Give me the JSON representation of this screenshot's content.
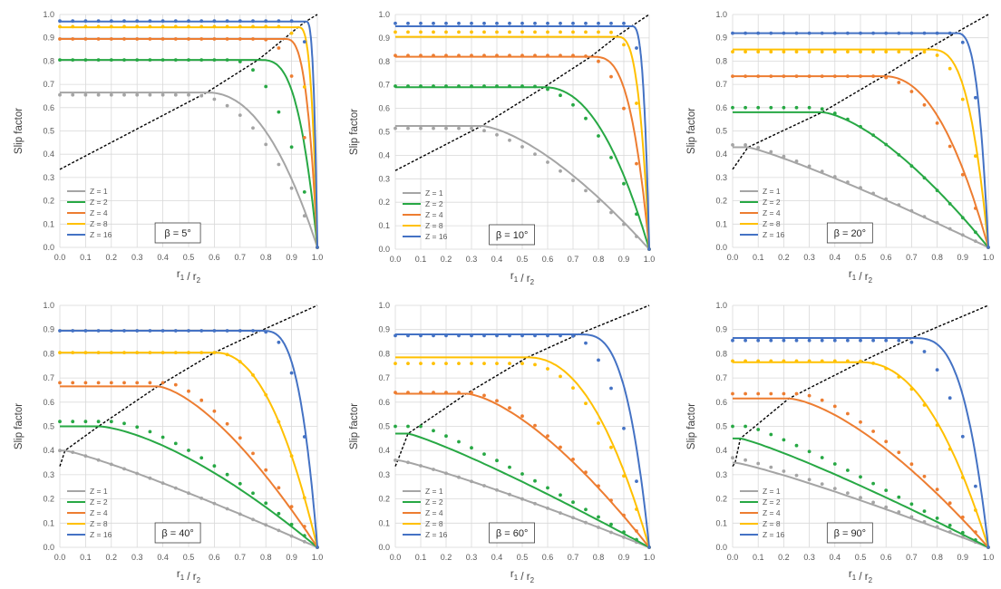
{
  "figure": {
    "xlabel": "r1 / r2",
    "ylabel": "Slip factor",
    "x_ticks": [
      "0.0",
      "0.1",
      "0.2",
      "0.3",
      "0.4",
      "0.5",
      "0.6",
      "0.7",
      "0.8",
      "0.9",
      "1.0"
    ],
    "y_ticks": [
      "0.0",
      "0.1",
      "0.2",
      "0.3",
      "0.4",
      "0.5",
      "0.6",
      "0.7",
      "0.8",
      "0.9",
      "1.0"
    ],
    "legend": [
      "Z = 1",
      "Z = 2",
      "Z = 4",
      "Z = 8",
      "Z = 16"
    ],
    "series_colors": [
      "#a5a5a5",
      "#27a844",
      "#ed7d31",
      "#ffc000",
      "#4472c4"
    ],
    "dashed_curve_color": "#000000"
  },
  "chart_data": [
    {
      "type": "line",
      "title": "β = 5°",
      "beta_label": "β = 5°",
      "xlabel": "r1 / r2",
      "ylabel": "Slip factor",
      "xlim": [
        0,
        1
      ],
      "ylim": [
        0,
        1
      ],
      "grid": true,
      "legend_position": "bottom-left",
      "plateau": [
        0.665,
        0.805,
        0.895,
        0.945,
        0.97
      ],
      "crossover": [
        0.57,
        0.77,
        0.87,
        0.925,
        0.955
      ],
      "marker_plateau": [
        0.655,
        0.805,
        0.895,
        0.948,
        0.972
      ],
      "marker_crossover": [
        0.5,
        0.66,
        0.76,
        0.85,
        0.905
      ],
      "series": [
        {
          "name": "Z = 1",
          "color": "#a5a5a5"
        },
        {
          "name": "Z = 2",
          "color": "#27a844"
        },
        {
          "name": "Z = 4",
          "color": "#ed7d31"
        },
        {
          "name": "Z = 8",
          "color": "#ffc000"
        },
        {
          "name": "Z = 16",
          "color": "#4472c4"
        }
      ]
    },
    {
      "type": "line",
      "title": "β = 10°",
      "beta_label": "β = 10°",
      "xlabel": "r1 / r2",
      "ylabel": "Slip factor",
      "xlim": [
        0,
        1
      ],
      "ylim": [
        0,
        1
      ],
      "grid": true,
      "legend_position": "bottom-left",
      "plateau": [
        0.525,
        0.69,
        0.82,
        0.905,
        0.95
      ],
      "crossover": [
        0.34,
        0.585,
        0.77,
        0.87,
        0.93
      ],
      "marker_plateau": [
        0.515,
        0.695,
        0.825,
        0.925,
        0.962
      ],
      "marker_crossover": [
        0.3,
        0.52,
        0.7,
        0.83,
        0.9
      ],
      "series": [
        {
          "name": "Z = 1",
          "color": "#a5a5a5"
        },
        {
          "name": "Z = 2",
          "color": "#27a844"
        },
        {
          "name": "Z = 4",
          "color": "#ed7d31"
        },
        {
          "name": "Z = 8",
          "color": "#ffc000"
        },
        {
          "name": "Z = 16",
          "color": "#4472c4"
        }
      ]
    },
    {
      "type": "line",
      "title": "β = 20°",
      "beta_label": "β = 20°",
      "xlabel": "r1 / r2",
      "ylabel": "Slip factor",
      "xlim": [
        0,
        1
      ],
      "ylim": [
        0,
        1
      ],
      "grid": true,
      "legend_position": "bottom-left",
      "plateau": [
        0.43,
        0.58,
        0.735,
        0.85,
        0.92
      ],
      "crossover": [
        0.06,
        0.35,
        0.59,
        0.76,
        0.87
      ],
      "marker_plateau": [
        0.44,
        0.6,
        0.735,
        0.84,
        0.92
      ],
      "marker_crossover": [
        0.06,
        0.32,
        0.55,
        0.72,
        0.84
      ],
      "series": [
        {
          "name": "Z = 1",
          "color": "#a5a5a5"
        },
        {
          "name": "Z = 2",
          "color": "#27a844"
        },
        {
          "name": "Z = 4",
          "color": "#ed7d31"
        },
        {
          "name": "Z = 8",
          "color": "#ffc000"
        },
        {
          "name": "Z = 16",
          "color": "#4472c4"
        }
      ]
    },
    {
      "type": "line",
      "title": "β = 40°",
      "beta_label": "β = 40°",
      "xlabel": "r1 / r2",
      "ylabel": "Slip factor",
      "xlim": [
        0,
        1
      ],
      "ylim": [
        0,
        1
      ],
      "grid": true,
      "legend_position": "bottom-left",
      "plateau": [
        0.4,
        0.5,
        0.665,
        0.805,
        0.895
      ],
      "crossover": [
        0.02,
        0.15,
        0.38,
        0.6,
        0.78
      ],
      "marker_plateau": [
        0.4,
        0.52,
        0.68,
        0.805,
        0.895
      ],
      "marker_crossover": [
        0.02,
        0.2,
        0.42,
        0.6,
        0.75
      ],
      "series": [
        {
          "name": "Z = 1",
          "color": "#a5a5a5"
        },
        {
          "name": "Z = 2",
          "color": "#27a844"
        },
        {
          "name": "Z = 4",
          "color": "#ed7d31"
        },
        {
          "name": "Z = 8",
          "color": "#ffc000"
        },
        {
          "name": "Z = 16",
          "color": "#4472c4"
        }
      ]
    },
    {
      "type": "line",
      "title": "β = 60°",
      "beta_label": "β = 60°",
      "xlabel": "r1 / r2",
      "ylabel": "Slip factor",
      "xlim": [
        0,
        1
      ],
      "ylim": [
        0,
        1
      ],
      "grid": true,
      "legend_position": "bottom-left",
      "plateau": [
        0.36,
        0.47,
        0.635,
        0.785,
        0.88
      ],
      "crossover": [
        0.01,
        0.05,
        0.28,
        0.52,
        0.72
      ],
      "marker_plateau": [
        0.36,
        0.5,
        0.64,
        0.76,
        0.875
      ],
      "marker_crossover": [
        0.01,
        0.1,
        0.3,
        0.5,
        0.68
      ],
      "series": [
        {
          "name": "Z = 1",
          "color": "#a5a5a5"
        },
        {
          "name": "Z = 2",
          "color": "#27a844"
        },
        {
          "name": "Z = 4",
          "color": "#ed7d31"
        },
        {
          "name": "Z = 8",
          "color": "#ffc000"
        },
        {
          "name": "Z = 16",
          "color": "#4472c4"
        }
      ]
    },
    {
      "type": "line",
      "title": "β = 90°",
      "beta_label": "β = 90°",
      "xlabel": "r1 / r2",
      "ylabel": "Slip factor",
      "xlim": [
        0,
        1
      ],
      "ylim": [
        0,
        1
      ],
      "grid": true,
      "legend_position": "bottom-left",
      "plateau": [
        0.35,
        0.45,
        0.615,
        0.765,
        0.865
      ],
      "crossover": [
        0.01,
        0.03,
        0.22,
        0.5,
        0.7
      ],
      "marker_plateau": [
        0.37,
        0.5,
        0.635,
        0.77,
        0.855
      ],
      "marker_crossover": [
        0.01,
        0.06,
        0.26,
        0.48,
        0.66
      ],
      "series": [
        {
          "name": "Z = 1",
          "color": "#a5a5a5"
        },
        {
          "name": "Z = 2",
          "color": "#27a844"
        },
        {
          "name": "Z = 4",
          "color": "#ed7d31"
        },
        {
          "name": "Z = 8",
          "color": "#ffc000"
        },
        {
          "name": "Z = 16",
          "color": "#4472c4"
        }
      ]
    }
  ]
}
